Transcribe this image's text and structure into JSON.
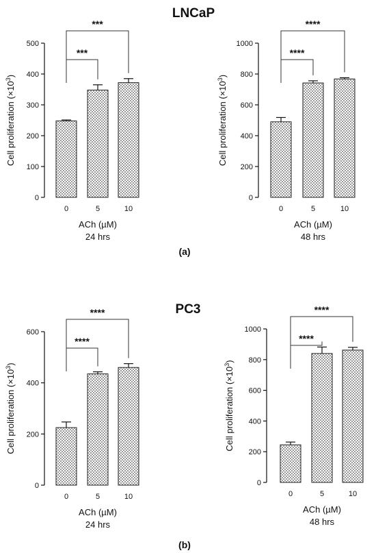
{
  "figure": {
    "title_top": "LNCaP",
    "title_bottom": "PC3",
    "panel_a": "(a)",
    "panel_b": "(b)"
  },
  "chart_data": [
    {
      "type": "bar",
      "group": "LNCaP",
      "categories": [
        "0",
        "5",
        "10"
      ],
      "values": [
        248,
        348,
        372
      ],
      "errors": [
        3,
        17,
        13
      ],
      "ylabel": "Cell proliferation (×10",
      "ylabel_sup": "3",
      "ylabel_end": ")",
      "xlabel": "ACh (µM)",
      "condition": "24 hrs",
      "ylim": [
        0,
        500
      ],
      "yticks": [
        0,
        100,
        200,
        300,
        400,
        500
      ],
      "significance": [
        {
          "from": 0,
          "to": 1,
          "label": "***"
        },
        {
          "from": 0,
          "to": 2,
          "label": "***"
        }
      ]
    },
    {
      "type": "bar",
      "group": "LNCaP",
      "categories": [
        "0",
        "5",
        "10"
      ],
      "values": [
        490,
        742,
        768
      ],
      "errors": [
        28,
        14,
        8
      ],
      "ylabel": "Cell proliferation (×10",
      "ylabel_sup": "3",
      "ylabel_end": ")",
      "xlabel": "ACh (µM)",
      "condition": "48 hrs",
      "ylim": [
        0,
        1000
      ],
      "yticks": [
        0,
        200,
        400,
        600,
        800,
        1000
      ],
      "significance": [
        {
          "from": 0,
          "to": 1,
          "label": "****"
        },
        {
          "from": 0,
          "to": 2,
          "label": "****"
        }
      ]
    },
    {
      "type": "bar",
      "group": "PC3",
      "categories": [
        "0",
        "5",
        "10"
      ],
      "values": [
        225,
        435,
        460
      ],
      "errors": [
        22,
        8,
        15
      ],
      "ylabel": "Cell proliferation (×10",
      "ylabel_sup": "3",
      "ylabel_end": ")",
      "xlabel": "ACh (µM)",
      "condition": "24 hrs",
      "ylim": [
        0,
        600
      ],
      "yticks": [
        0,
        200,
        400,
        600
      ],
      "significance": [
        {
          "from": 0,
          "to": 1,
          "label": "****"
        },
        {
          "from": 0,
          "to": 2,
          "label": "****"
        }
      ]
    },
    {
      "type": "bar",
      "group": "PC3",
      "categories": [
        "0",
        "5",
        "10"
      ],
      "values": [
        245,
        840,
        862
      ],
      "errors": [
        18,
        42,
        18
      ],
      "ylabel": "Cell proliferation (×10",
      "ylabel_sup": "3",
      "ylabel_end": ")",
      "xlabel": "ACh (µM)",
      "condition": "48 hrs",
      "ylim": [
        0,
        1000
      ],
      "yticks": [
        0,
        200,
        400,
        600,
        800,
        1000
      ],
      "significance": [
        {
          "from": 0,
          "to": 1,
          "label": "****"
        },
        {
          "from": 0,
          "to": 2,
          "label": "****"
        }
      ]
    }
  ]
}
